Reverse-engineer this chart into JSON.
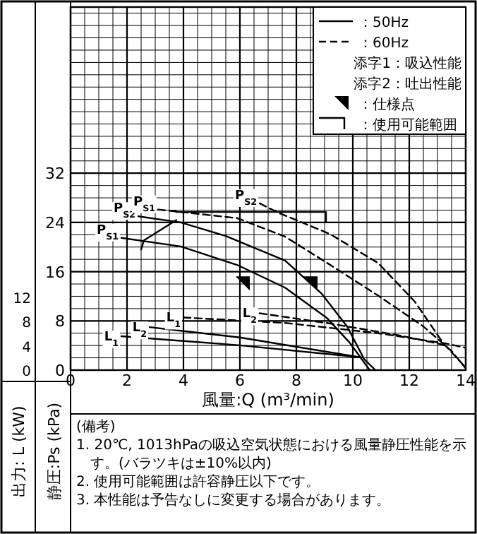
{
  "chart_data": {
    "type": "line",
    "xlabel": "風量:Q (m³/min)",
    "ylabel": "静圧:Ps (kPa)",
    "y2label": "出力: L (kW)",
    "xlim": [
      0,
      14
    ],
    "xticks": [
      0,
      2,
      4,
      6,
      8,
      10,
      12,
      14
    ],
    "ylim": [
      0,
      59
    ],
    "yticks": [
      0,
      8,
      16,
      24,
      32
    ],
    "y2lim": [
      0,
      60
    ],
    "y2ticks": [
      0,
      4,
      8,
      12
    ],
    "grid": true,
    "annotations": [
      "：50Hz",
      "：60Hz",
      "添字1：吸込性能",
      "添字2：吐出性能",
      "：使用可能範囲",
      "(備考)",
      "1. 20℃, 1013hPaの吸込空気状態における風量静圧性能を示す。(バラツキは±10%以内)",
      "2. 使用可能範囲は許容静圧以下です。",
      "3. 本性能は予告なしに変更する場合があります。"
    ],
    "series": [
      {
        "name": "P$_{S1}$",
        "color": "#000000",
        "line_style": "solid",
        "x": [
          1.8,
          3.9,
          5.9,
          7.6,
          9.1,
          9.9,
          10.6
        ],
        "values": [
          21.5,
          20.1,
          17.1,
          13.4,
          8.4,
          4.4,
          0
        ]
      },
      {
        "name": "P$_{S2}$",
        "color": "#000000",
        "line_style": "solid",
        "x": [
          2.4,
          3.9,
          5.5,
          7.6,
          8.9,
          9.8,
          10.4,
          10.8
        ],
        "values": [
          25,
          24,
          21.8,
          17.8,
          12.4,
          7.1,
          1.8,
          0
        ]
      },
      {
        "name": "P$_{S1}$",
        "color": "#000000",
        "line_style": "dashed",
        "x": [
          3.1,
          5.9,
          7.6,
          9.2,
          10.9,
          12.5,
          13.5,
          14
        ],
        "values": [
          26.1,
          24.7,
          21.7,
          17.1,
          12.1,
          7.1,
          3.1,
          0.3
        ]
      },
      {
        "name": "P$_{S2}$",
        "color": "#000000",
        "line_style": "dashed",
        "x": [
          6.7,
          7.3,
          9.2,
          10.9,
          12.2,
          13.2,
          14
        ],
        "values": [
          27.1,
          25.7,
          22.1,
          17.4,
          11.1,
          4.4,
          0.4
        ]
      },
      {
        "name": "L$_{1}$",
        "color": "#000000",
        "line_style": "solid",
        "axis": "y2",
        "x": [
          1.8,
          6,
          10.3
        ],
        "values": [
          5.6,
          4.1,
          2.1
        ]
      },
      {
        "name": "L$_{2}$",
        "color": "#000000",
        "line_style": "solid",
        "axis": "y2",
        "x": [
          2.8,
          6,
          10.3
        ],
        "values": [
          7.1,
          5.4,
          2.1
        ]
      },
      {
        "name": "L$_{1}$",
        "color": "#000000",
        "line_style": "dashed",
        "axis": "y2",
        "x": [
          4,
          7.6,
          10.9,
          13.3,
          14
        ],
        "values": [
          8.7,
          7.8,
          6.1,
          4.4,
          3.7
        ]
      },
      {
        "name": "L$_{2}$",
        "color": "#000000",
        "line_style": "dashed",
        "axis": "y2",
        "x": [
          6.7,
          9.2,
          11.7,
          13.3
        ],
        "values": [
          9.4,
          7.7,
          5.7,
          4.1
        ]
      },
      {
        "type": "scatter",
        "name": "：仕様点",
        "marker": "triangle",
        "color": "#000000",
        "x": [
          6.1,
          8.5
        ],
        "values": [
          14.1,
          14.1
        ]
      },
      {
        "color": "#000000",
        "line_style": "solid",
        "x": [
          2.5,
          2.6,
          3.75
        ],
        "values": [
          19.6,
          21.1,
          24.4
        ]
      },
      {
        "color": "#000000",
        "line_style": "solid",
        "x": [
          3.75,
          9.05,
          9.05
        ],
        "values": [
          25.7,
          25.7,
          24.1
        ]
      }
    ]
  }
}
